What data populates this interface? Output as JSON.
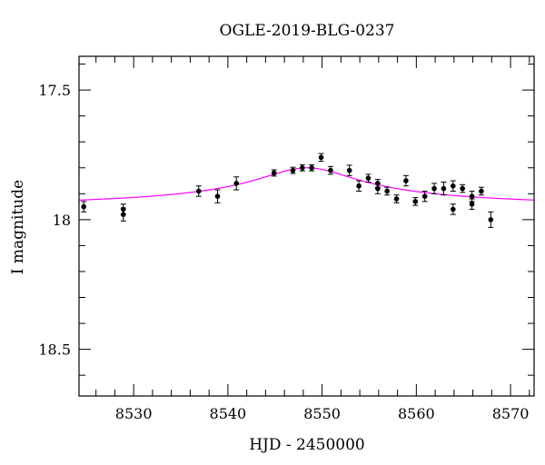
{
  "chart_data": {
    "type": "scatter",
    "title": "OGLE-2019-BLG-0237",
    "xlabel": "HJD - 2450000",
    "ylabel": "I magnitude",
    "xlim": [
      8524.2,
      8572.5
    ],
    "ylim": [
      18.68,
      17.37
    ],
    "y_inverted": true,
    "x_ticks": [
      8530,
      8540,
      8550,
      8560,
      8570
    ],
    "x_tick_labels": [
      "8530",
      "8540",
      "8550",
      "8560",
      "8570"
    ],
    "y_ticks": [
      17.5,
      18,
      18.5
    ],
    "y_tick_labels": [
      "17.5",
      "18",
      "18.5"
    ],
    "x_minor_step": 2,
    "y_minor_step": 0.1,
    "grid": false,
    "series": [
      {
        "kind": "points",
        "color": "#000000",
        "points": [
          {
            "x": 8524.7,
            "y": 17.95,
            "err": 0.02
          },
          {
            "x": 8528.9,
            "y": 17.96,
            "err": 0.02
          },
          {
            "x": 8528.9,
            "y": 17.98,
            "err": 0.025
          },
          {
            "x": 8536.9,
            "y": 17.89,
            "err": 0.02
          },
          {
            "x": 8538.9,
            "y": 17.91,
            "err": 0.025
          },
          {
            "x": 8540.9,
            "y": 17.86,
            "err": 0.025
          },
          {
            "x": 8544.9,
            "y": 17.82,
            "err": 0.012
          },
          {
            "x": 8546.9,
            "y": 17.81,
            "err": 0.012
          },
          {
            "x": 8547.9,
            "y": 17.8,
            "err": 0.012
          },
          {
            "x": 8548.9,
            "y": 17.8,
            "err": 0.012
          },
          {
            "x": 8549.9,
            "y": 17.76,
            "err": 0.015
          },
          {
            "x": 8550.9,
            "y": 17.81,
            "err": 0.015
          },
          {
            "x": 8552.9,
            "y": 17.81,
            "err": 0.02
          },
          {
            "x": 8553.9,
            "y": 17.87,
            "err": 0.02
          },
          {
            "x": 8554.9,
            "y": 17.84,
            "err": 0.015
          },
          {
            "x": 8555.9,
            "y": 17.88,
            "err": 0.02
          },
          {
            "x": 8555.9,
            "y": 17.86,
            "err": 0.015
          },
          {
            "x": 8556.9,
            "y": 17.89,
            "err": 0.015
          },
          {
            "x": 8557.9,
            "y": 17.92,
            "err": 0.015
          },
          {
            "x": 8558.9,
            "y": 17.85,
            "err": 0.02
          },
          {
            "x": 8559.9,
            "y": 17.93,
            "err": 0.015
          },
          {
            "x": 8560.9,
            "y": 17.91,
            "err": 0.02
          },
          {
            "x": 8561.9,
            "y": 17.88,
            "err": 0.02
          },
          {
            "x": 8562.9,
            "y": 17.88,
            "err": 0.025
          },
          {
            "x": 8563.9,
            "y": 17.87,
            "err": 0.02
          },
          {
            "x": 8563.9,
            "y": 17.96,
            "err": 0.02
          },
          {
            "x": 8564.9,
            "y": 17.88,
            "err": 0.015
          },
          {
            "x": 8565.9,
            "y": 17.91,
            "err": 0.02
          },
          {
            "x": 8565.9,
            "y": 17.94,
            "err": 0.02
          },
          {
            "x": 8566.9,
            "y": 17.89,
            "err": 0.015
          },
          {
            "x": 8567.9,
            "y": 18.0,
            "err": 0.03
          }
        ]
      },
      {
        "kind": "model-curve",
        "color": "#ff00ff",
        "model": {
          "baseline": 17.96,
          "peak_time": 8548.4,
          "amplitude": 0.16,
          "width": 5.5
        }
      }
    ]
  }
}
